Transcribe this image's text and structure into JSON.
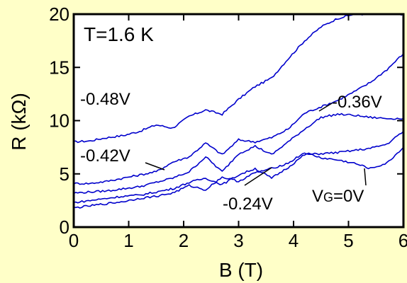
{
  "chart_data": {
    "type": "line",
    "title": "",
    "xlabel": "B (T)",
    "ylabel": "R (kΩ)",
    "xlim": [
      0,
      6
    ],
    "ylim": [
      0,
      20
    ],
    "xticks": [
      "0",
      "1",
      "2",
      "3",
      "4",
      "5",
      "6"
    ],
    "yticks": [
      "0",
      "5",
      "10",
      "15",
      "20"
    ],
    "grid": false,
    "line_color": "#0000cc",
    "background": "#ffffc8",
    "annotations": {
      "temperature": "T=1.6 K",
      "vg_048": "-0.48V",
      "vg_042": "-0.42V",
      "vg_036": "-0.36V",
      "vg_024": "-0.24V",
      "vg_0_prefix": "V",
      "vg_0_sub": "G",
      "vg_0_suffix": "=0V"
    },
    "series": [
      {
        "label_key": "vg_048",
        "x": [
          0,
          0.3,
          0.6,
          0.9,
          1.2,
          1.5,
          1.8,
          2.1,
          2.4,
          2.7,
          3.0,
          3.3,
          3.6,
          3.9,
          4.2,
          4.5,
          4.8,
          5.1,
          5.4,
          5.7,
          6.0
        ],
        "y": [
          8.0,
          8.1,
          8.4,
          8.6,
          9.0,
          9.6,
          9.3,
          10.4,
          11.0,
          10.6,
          12.0,
          13.2,
          14.0,
          15.8,
          17.5,
          18.8,
          19.6,
          20.0,
          20.0,
          20.0,
          20.0
        ]
      },
      {
        "label_key": "vg_042",
        "x": [
          0,
          0.3,
          0.6,
          0.9,
          1.2,
          1.5,
          1.8,
          2.1,
          2.4,
          2.7,
          3.0,
          3.3,
          3.6,
          3.9,
          4.2,
          4.5,
          4.8,
          5.1,
          5.4,
          5.7,
          6.0
        ],
        "y": [
          4.1,
          4.1,
          4.3,
          4.6,
          4.9,
          5.2,
          6.1,
          6.6,
          7.9,
          6.8,
          8.2,
          8.0,
          8.4,
          9.2,
          10.7,
          11.3,
          11.9,
          12.7,
          13.6,
          14.8,
          16.3
        ]
      },
      {
        "label_key": "vg_036",
        "x": [
          0,
          0.3,
          0.6,
          0.9,
          1.2,
          1.5,
          1.8,
          2.1,
          2.4,
          2.7,
          3.0,
          3.3,
          3.6,
          3.9,
          4.2,
          4.5,
          4.8,
          5.1,
          5.4,
          5.7,
          6.0
        ],
        "y": [
          3.2,
          3.3,
          3.4,
          3.6,
          3.8,
          4.2,
          4.6,
          5.2,
          6.6,
          5.2,
          6.9,
          7.6,
          6.8,
          8.0,
          9.2,
          10.3,
          10.6,
          10.5,
          10.3,
          10.2,
          10.2
        ]
      },
      {
        "label_key": "vg_024",
        "x": [
          0,
          0.3,
          0.6,
          0.9,
          1.2,
          1.5,
          1.8,
          2.1,
          2.4,
          2.7,
          3.0,
          3.3,
          3.6,
          3.9,
          4.2,
          4.5,
          4.8,
          5.1,
          5.4,
          5.7,
          6.0
        ],
        "y": [
          2.3,
          2.5,
          2.7,
          2.9,
          3.0,
          3.3,
          3.6,
          4.2,
          4.6,
          4.0,
          4.9,
          5.5,
          4.6,
          5.6,
          6.8,
          6.9,
          7.0,
          7.2,
          7.4,
          7.8,
          9.0
        ]
      },
      {
        "label_key": "vg_0",
        "x": [
          0,
          0.3,
          0.6,
          0.9,
          1.2,
          1.5,
          1.8,
          2.1,
          2.4,
          2.7,
          3.0,
          3.3,
          3.6,
          3.9,
          4.2,
          4.5,
          4.8,
          5.1,
          5.4,
          5.7,
          6.0
        ],
        "y": [
          1.8,
          2.0,
          2.2,
          2.4,
          2.7,
          2.9,
          3.2,
          3.9,
          3.5,
          4.7,
          4.3,
          5.1,
          5.5,
          6.0,
          7.0,
          6.5,
          6.3,
          6.0,
          5.5,
          6.0,
          7.5
        ]
      }
    ]
  }
}
